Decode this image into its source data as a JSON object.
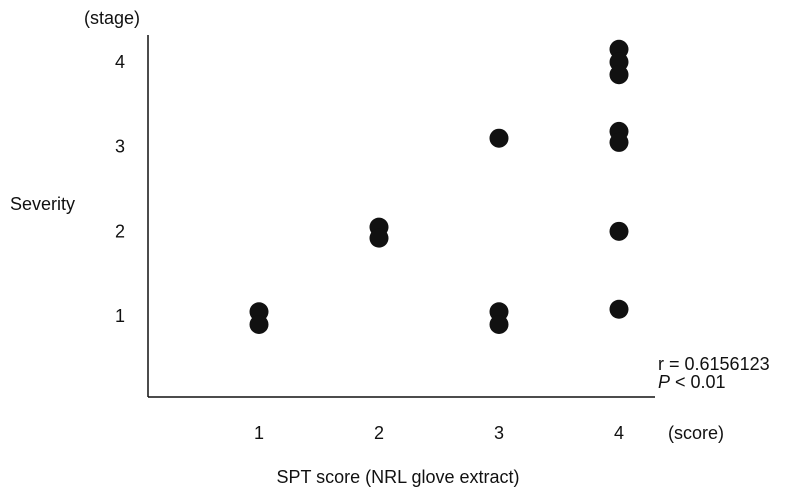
{
  "chart_data": {
    "type": "scatter",
    "title": "",
    "xlabel": "SPT score (NRL glove extract)",
    "ylabel": "Severity",
    "x_unit": "(score)",
    "y_unit": "(stage)",
    "xlim": [
      0,
      5
    ],
    "ylim": [
      0,
      4.3
    ],
    "x_ticks": [
      "1",
      "2",
      "3",
      "4"
    ],
    "y_ticks": [
      "1",
      "2",
      "3",
      "4"
    ],
    "grid": false,
    "points": [
      {
        "x": 1,
        "y": 1.05
      },
      {
        "x": 1,
        "y": 0.9
      },
      {
        "x": 2,
        "y": 2.05
      },
      {
        "x": 2,
        "y": 1.92
      },
      {
        "x": 3,
        "y": 3.1
      },
      {
        "x": 3,
        "y": 1.05
      },
      {
        "x": 3,
        "y": 0.9
      },
      {
        "x": 4,
        "y": 4.15
      },
      {
        "x": 4,
        "y": 4.0
      },
      {
        "x": 4,
        "y": 3.85
      },
      {
        "x": 4,
        "y": 3.18
      },
      {
        "x": 4,
        "y": 3.05
      },
      {
        "x": 4,
        "y": 2.0
      },
      {
        "x": 4,
        "y": 1.08
      }
    ],
    "annotations": {
      "r_label": "r = 0.6156123",
      "p_symbol": "P",
      "p_rest": " < 0.01"
    },
    "marker_color": "#111111"
  }
}
